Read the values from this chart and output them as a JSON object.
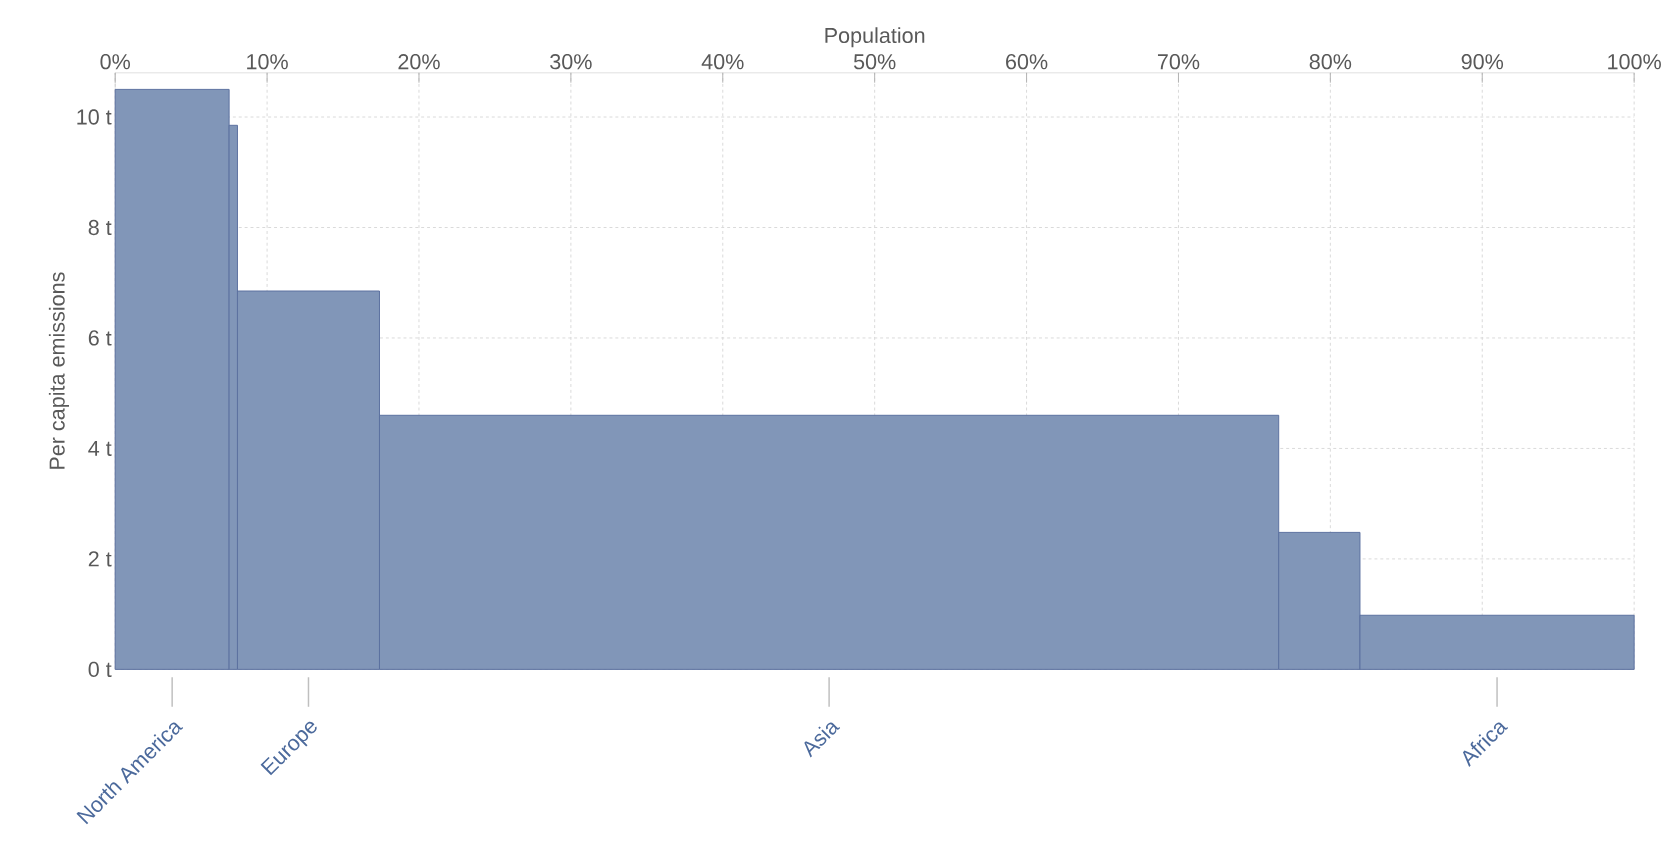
{
  "chart_data": {
    "type": "histogram",
    "xlabel": "Population",
    "ylabel": "Per capita emissions",
    "bins": [
      0,
      7.5,
      8.05,
      17.4,
      76.6,
      81.95,
      100
    ],
    "values": [
      10.5,
      9.85,
      6.85,
      4.6,
      2.48,
      0.98
    ],
    "categories": [
      "North America",
      null,
      "Europe",
      "Asia",
      null,
      "Africa"
    ],
    "color": "#8196b8",
    "xlim": [
      0,
      100
    ],
    "ylim": [
      0,
      10.8
    ],
    "xticks": [
      {
        "value": 0,
        "label": "0%"
      },
      {
        "value": 10,
        "label": "10%"
      },
      {
        "value": 20,
        "label": "20%"
      },
      {
        "value": 30,
        "label": "30%"
      },
      {
        "value": 40,
        "label": "40%"
      },
      {
        "value": 50,
        "label": "50%"
      },
      {
        "value": 60,
        "label": "60%"
      },
      {
        "value": 70,
        "label": "70%"
      },
      {
        "value": 80,
        "label": "80%"
      },
      {
        "value": 90,
        "label": "90%"
      },
      {
        "value": 100,
        "label": "100%"
      }
    ],
    "yticks": [
      {
        "value": 0,
        "label": "0 t"
      },
      {
        "value": 2,
        "label": "2 t"
      },
      {
        "value": 4,
        "label": "4 t"
      },
      {
        "value": 6,
        "label": "6 t"
      },
      {
        "value": 8,
        "label": "8 t"
      },
      {
        "value": 10,
        "label": "10 t"
      }
    ],
    "grid": true
  }
}
